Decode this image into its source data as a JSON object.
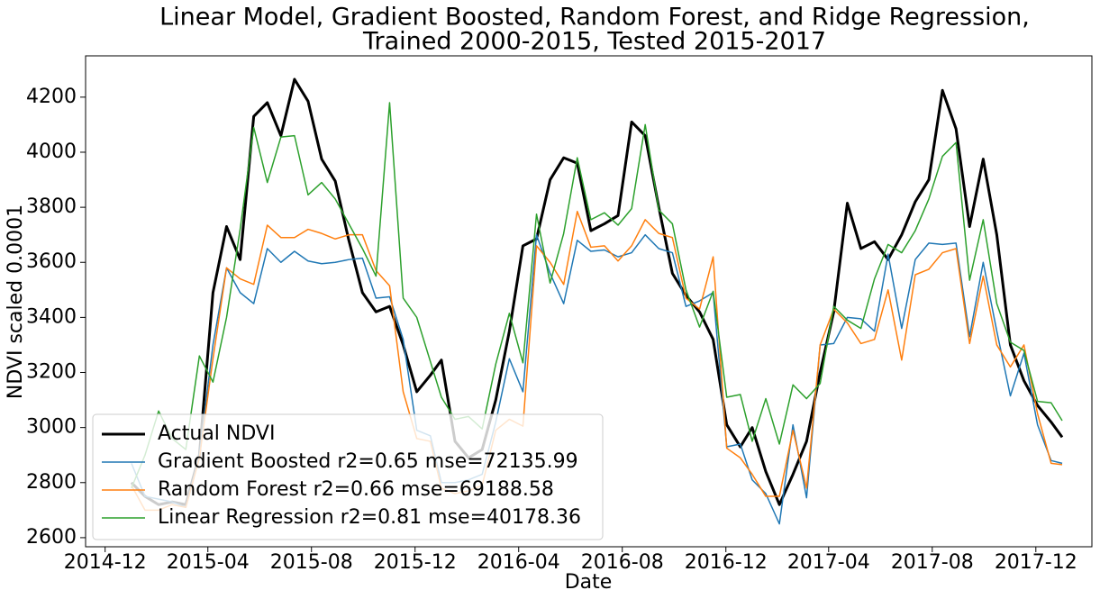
{
  "chart_data": {
    "type": "line",
    "title": [
      "Linear Model, Gradient Boosted, Random Forest, and Ridge Regression,",
      "Trained 2000-2015, Tested 2015-2017"
    ],
    "xlabel": "Date",
    "ylabel": "NDVI scaled 0.0001",
    "xlim": [
      "2014-11-08",
      "2018-02-05"
    ],
    "ylim": [
      2567,
      4350
    ],
    "xticks": [
      "2014-12",
      "2015-04",
      "2015-08",
      "2015-12",
      "2016-04",
      "2016-08",
      "2016-12",
      "2017-04",
      "2017-08",
      "2017-12"
    ],
    "yticks": [
      2600,
      2800,
      3000,
      3200,
      3400,
      3600,
      3800,
      4000,
      4200
    ],
    "legend": "lower left",
    "x": [
      "2015-01-01",
      "2015-01-17",
      "2015-02-02",
      "2015-02-18",
      "2015-03-06",
      "2015-03-22",
      "2015-04-07",
      "2015-04-23",
      "2015-05-09",
      "2015-05-25",
      "2015-06-10",
      "2015-06-26",
      "2015-07-12",
      "2015-07-28",
      "2015-08-13",
      "2015-08-29",
      "2015-09-14",
      "2015-09-30",
      "2015-10-16",
      "2015-11-01",
      "2015-11-17",
      "2015-12-03",
      "2015-12-19",
      "2016-01-01",
      "2016-01-17",
      "2016-02-02",
      "2016-02-18",
      "2016-03-05",
      "2016-03-21",
      "2016-04-06",
      "2016-04-22",
      "2016-05-08",
      "2016-05-24",
      "2016-06-09",
      "2016-06-25",
      "2016-07-11",
      "2016-07-27",
      "2016-08-12",
      "2016-08-28",
      "2016-09-13",
      "2016-09-29",
      "2016-10-15",
      "2016-10-31",
      "2016-11-16",
      "2016-12-02",
      "2016-12-18",
      "2017-01-01",
      "2017-01-17",
      "2017-02-02",
      "2017-02-18",
      "2017-03-06",
      "2017-03-22",
      "2017-04-07",
      "2017-04-23",
      "2017-05-09",
      "2017-05-25",
      "2017-06-10",
      "2017-06-26",
      "2017-07-12",
      "2017-07-28",
      "2017-08-13",
      "2017-08-29",
      "2017-09-14",
      "2017-09-30",
      "2017-10-16",
      "2017-11-01",
      "2017-11-17",
      "2017-12-03",
      "2017-12-19",
      "2018-01-01"
    ],
    "series": [
      {
        "name": "Actual NDVI",
        "color": "#000000",
        "width": 3,
        "values": [
          2800,
          2750,
          2720,
          2730,
          2720,
          2900,
          3490,
          3730,
          3610,
          4130,
          4180,
          4060,
          4265,
          4185,
          3975,
          3895,
          3680,
          3490,
          3420,
          3440,
          3300,
          3130,
          3190,
          3245,
          2950,
          2890,
          2920,
          3100,
          3350,
          3660,
          3685,
          3900,
          3980,
          3960,
          3715,
          3740,
          3770,
          4110,
          4060,
          3800,
          3560,
          3480,
          3420,
          3320,
          3010,
          2930,
          3000,
          2840,
          2720,
          2830,
          2950,
          3200,
          3420,
          3815,
          3650,
          3675,
          3610,
          3700,
          3820,
          3900,
          4225,
          4085,
          3730,
          3975,
          3700,
          3300,
          3170,
          3080,
          3020,
          2965
        ]
      },
      {
        "name": "Gradient Boosted r2=0.65 mse=72135.99",
        "color": "#1f77b4",
        "width": 1.5,
        "values": [
          2870,
          2750,
          2740,
          2730,
          2710,
          2900,
          3300,
          3580,
          3490,
          3450,
          3650,
          3600,
          3640,
          3605,
          3595,
          3600,
          3610,
          3615,
          3470,
          3475,
          3320,
          2990,
          2970,
          2800,
          2800,
          2810,
          2830,
          3020,
          3250,
          3130,
          3700,
          3560,
          3450,
          3680,
          3640,
          3645,
          3620,
          3635,
          3700,
          3650,
          3635,
          3440,
          3460,
          3490,
          2930,
          2940,
          2810,
          2760,
          2650,
          3010,
          2745,
          3300,
          3305,
          3400,
          3395,
          3350,
          3630,
          3360,
          3610,
          3670,
          3665,
          3670,
          3330,
          3600,
          3350,
          3115,
          3270,
          3010,
          2880,
          2870
        ]
      },
      {
        "name": "Random Forest r2=0.66 mse=69188.58",
        "color": "#ff7f0e",
        "width": 1.5,
        "values": [
          2790,
          2700,
          2700,
          2720,
          2710,
          2890,
          3250,
          3580,
          3540,
          3520,
          3735,
          3690,
          3690,
          3720,
          3705,
          3685,
          3700,
          3700,
          3570,
          3515,
          3130,
          2960,
          2950,
          2780,
          2760,
          2770,
          2790,
          2990,
          3030,
          3005,
          3660,
          3600,
          3520,
          3785,
          3655,
          3660,
          3605,
          3660,
          3755,
          3705,
          3690,
          3470,
          3430,
          3620,
          2925,
          2890,
          2830,
          2750,
          2750,
          2990,
          2780,
          3300,
          3430,
          3380,
          3305,
          3320,
          3500,
          3245,
          3555,
          3575,
          3635,
          3650,
          3305,
          3550,
          3300,
          3220,
          3300,
          3050,
          2870,
          2865
        ]
      },
      {
        "name": "Linear Regression r2=0.81 mse=40178.36",
        "color": "#2ca02c",
        "width": 1.5,
        "values": [
          2780,
          2900,
          3060,
          2960,
          2920,
          3260,
          3165,
          3400,
          3720,
          4090,
          3890,
          4055,
          4060,
          3845,
          3890,
          3830,
          3740,
          3650,
          3550,
          4180,
          3470,
          3400,
          3240,
          3110,
          3030,
          3040,
          2995,
          3230,
          3415,
          3235,
          3775,
          3525,
          3705,
          3980,
          3755,
          3780,
          3735,
          3795,
          4100,
          3790,
          3740,
          3500,
          3365,
          3495,
          3110,
          3120,
          2950,
          3105,
          2940,
          3155,
          3105,
          3160,
          3440,
          3390,
          3360,
          3540,
          3665,
          3635,
          3715,
          3830,
          3985,
          4035,
          3535,
          3755,
          3450,
          3310,
          3280,
          3095,
          3090,
          3025
        ]
      }
    ]
  }
}
